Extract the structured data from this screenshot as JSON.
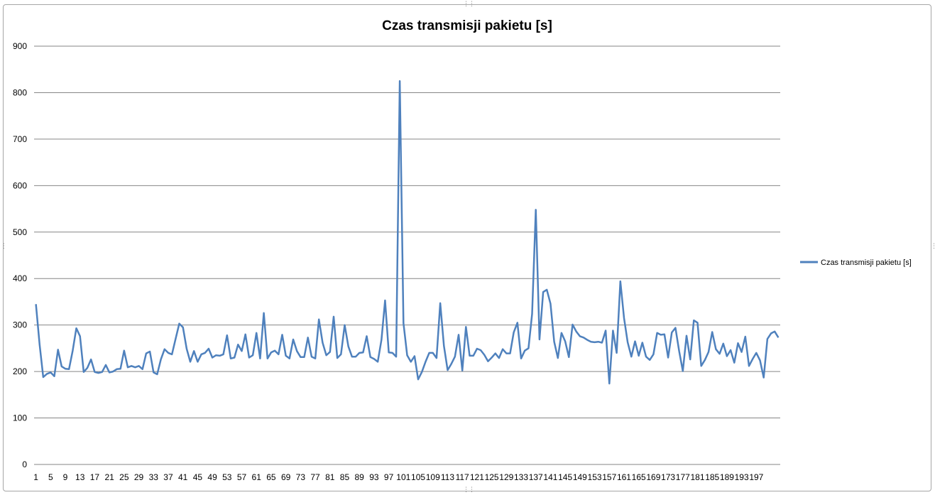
{
  "chart_data": {
    "type": "line",
    "title": "Czas transmisji pakietu [s]",
    "xlabel": "",
    "ylabel": "",
    "ylim": [
      0,
      900
    ],
    "y_ticks": [
      0,
      100,
      200,
      300,
      400,
      500,
      600,
      700,
      800,
      900
    ],
    "x_tick_labels": [
      "1",
      "5",
      "9",
      "13",
      "17",
      "21",
      "25",
      "29",
      "33",
      "37",
      "41",
      "45",
      "49",
      "53",
      "57",
      "61",
      "65",
      "69",
      "73",
      "77",
      "81",
      "85",
      "89",
      "93",
      "97",
      "101",
      "105",
      "109",
      "113",
      "117",
      "121",
      "125",
      "129",
      "133",
      "137",
      "141",
      "145",
      "149",
      "153",
      "157",
      "161",
      "165",
      "169",
      "173",
      "177",
      "181",
      "185",
      "189",
      "193",
      "197"
    ],
    "grid": "horizontal",
    "legend_position": "right",
    "color": "#4f81bd",
    "series": [
      {
        "name": "Czas transmisji pakietu [s]",
        "values": [
          345,
          258,
          188,
          195,
          198,
          190,
          247,
          211,
          206,
          205,
          245,
          293,
          276,
          199,
          208,
          226,
          199,
          197,
          199,
          214,
          198,
          200,
          205,
          206,
          245,
          209,
          212,
          209,
          212,
          205,
          239,
          243,
          198,
          194,
          226,
          248,
          240,
          237,
          270,
          303,
          295,
          249,
          221,
          244,
          221,
          237,
          240,
          249,
          230,
          235,
          234,
          237,
          278,
          228,
          230,
          258,
          244,
          280,
          230,
          235,
          283,
          228,
          326,
          228,
          241,
          245,
          237,
          279,
          234,
          228,
          269,
          244,
          231,
          231,
          273,
          232,
          228,
          312,
          262,
          235,
          242,
          318,
          229,
          237,
          300,
          254,
          232,
          232,
          240,
          241,
          276,
          231,
          227,
          221,
          268,
          353,
          241,
          240,
          232,
          825,
          304,
          235,
          221,
          233,
          183,
          199,
          221,
          240,
          240,
          229,
          347,
          255,
          203,
          216,
          232,
          279,
          202,
          296,
          234,
          234,
          249,
          246,
          236,
          222,
          230,
          239,
          229,
          248,
          239,
          239,
          284,
          305,
          228,
          245,
          250,
          324,
          548,
          269,
          371,
          376,
          346,
          264,
          229,
          283,
          265,
          231,
          301,
          286,
          276,
          273,
          268,
          264,
          263,
          264,
          262,
          288,
          174,
          288,
          240,
          394,
          315,
          263,
          232,
          265,
          234,
          262,
          232,
          225,
          237,
          283,
          279,
          280,
          230,
          284,
          294,
          244,
          201,
          277,
          226,
          310,
          305,
          212,
          225,
          242,
          285,
          248,
          238,
          260,
          233,
          246,
          219,
          261,
          242,
          275,
          212,
          227,
          240,
          224,
          187,
          270,
          282,
          286,
          273
        ]
      }
    ]
  }
}
